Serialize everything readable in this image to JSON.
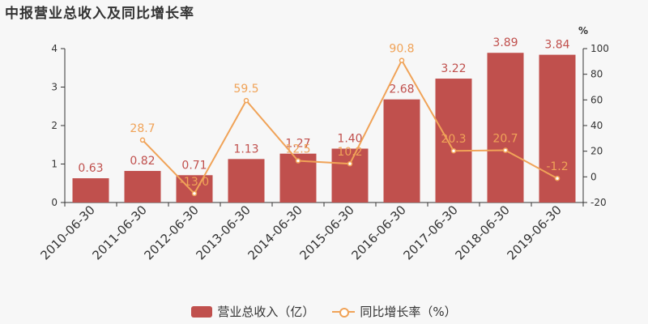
{
  "title": "中报营业总收入及同比增长率",
  "chart_data": {
    "type": "bar",
    "categories": [
      "2010-06-30",
      "2011-06-30",
      "2012-06-30",
      "2013-06-30",
      "2014-06-30",
      "2015-06-30",
      "2016-06-30",
      "2017-06-30",
      "2018-06-30",
      "2019-06-30"
    ],
    "series": [
      {
        "name": "营业总收入（亿）",
        "type": "bar",
        "axis": "left",
        "values": [
          0.63,
          0.82,
          0.71,
          1.13,
          1.27,
          1.4,
          2.68,
          3.22,
          3.89,
          3.84
        ],
        "labels": [
          "0.63",
          "0.82",
          "0.71",
          "1.13",
          "1.27",
          "1.40",
          "2.68",
          "3.22",
          "3.89",
          "3.84"
        ],
        "color": "#c0504d"
      },
      {
        "name": "同比增长率（%）",
        "type": "line",
        "axis": "right",
        "values": [
          null,
          28.7,
          -13.0,
          59.5,
          12.5,
          10.2,
          90.8,
          20.3,
          20.7,
          -1.2
        ],
        "labels": [
          "",
          "28.7",
          "-13.0",
          "59.5",
          "12.5",
          "10.2",
          "90.8",
          "20.3",
          "20.7",
          "-1.2"
        ],
        "color": "#f0a358"
      }
    ],
    "y_left": {
      "min": 0,
      "max": 4,
      "ticks": [
        "0",
        "1",
        "2",
        "3",
        "4"
      ]
    },
    "y_right": {
      "min": -20,
      "max": 100,
      "ticks": [
        "-20",
        "0",
        "20",
        "40",
        "60",
        "80",
        "100"
      ],
      "unit": "%"
    },
    "legend_position": "bottom-center",
    "grid": false
  },
  "legend": {
    "bar_label": "营业总收入（亿）",
    "line_label": "同比增长率（%）"
  }
}
